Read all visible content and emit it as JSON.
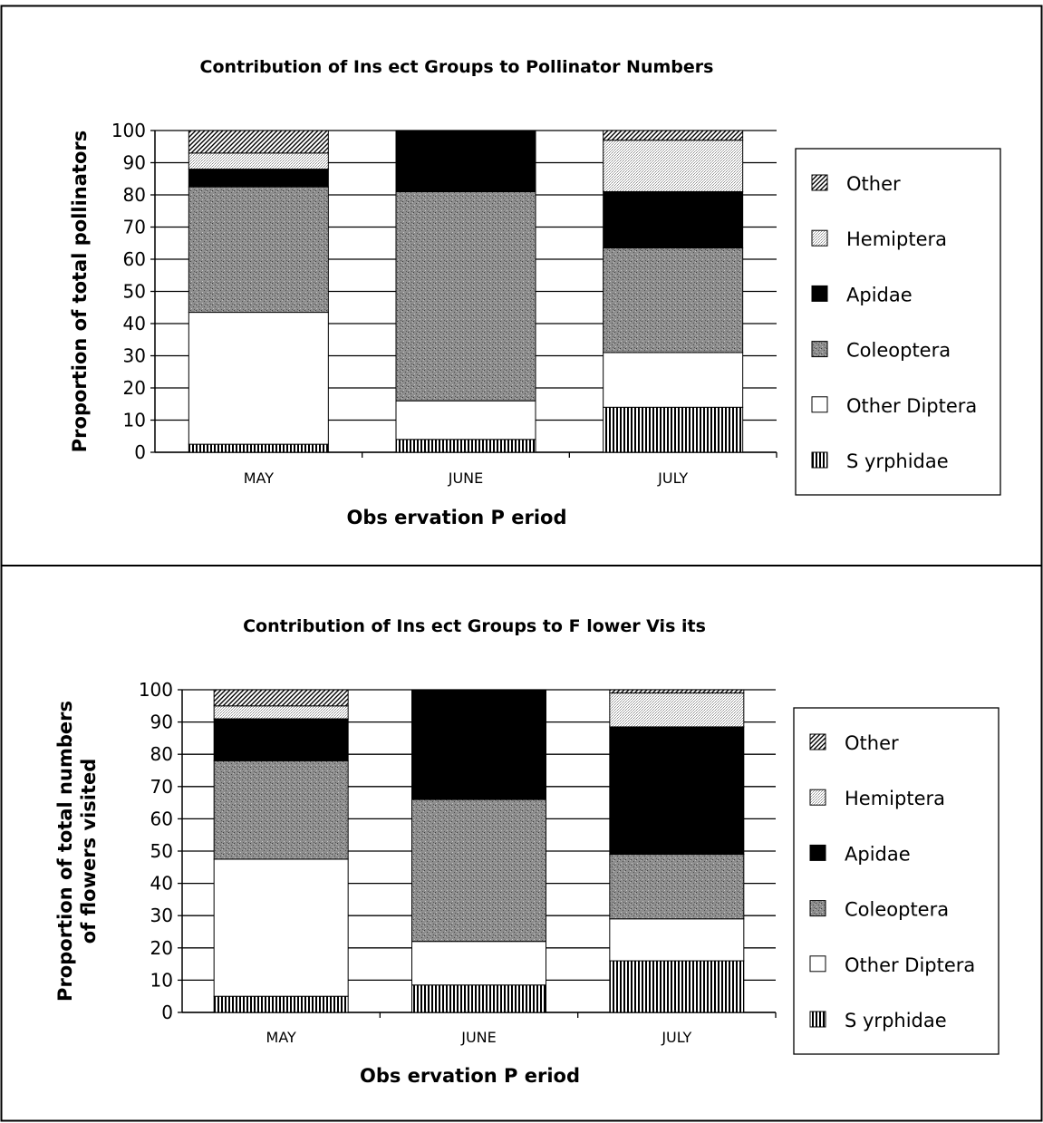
{
  "chart_data": [
    {
      "type": "bar",
      "stacked": true,
      "title": "Contribution of Ins ect Groups to Pollinator Numbers",
      "xlabel": "Obs ervation P eriod",
      "ylabel": "Proportion of total pollinators",
      "ylim": [
        0,
        100
      ],
      "yticks": [
        0,
        10,
        20,
        30,
        40,
        50,
        60,
        70,
        80,
        90,
        100
      ],
      "grid": true,
      "legend_position": "right",
      "categories": [
        "MAY",
        "JUNE",
        "JULY"
      ],
      "series": [
        {
          "name": "S yrphidae",
          "pattern": "vertical-stripes",
          "values": [
            2.5,
            4,
            14
          ]
        },
        {
          "name": "Other Diptera",
          "pattern": "white",
          "values": [
            41,
            12,
            17
          ]
        },
        {
          "name": "Coleoptera",
          "pattern": "stipple-dark",
          "values": [
            39,
            65,
            32.5
          ]
        },
        {
          "name": "Apidae",
          "pattern": "black",
          "values": [
            5.5,
            19,
            17.5
          ]
        },
        {
          "name": "Hemiptera",
          "pattern": "stipple-light",
          "values": [
            5,
            0,
            16
          ]
        },
        {
          "name": "Other",
          "pattern": "diagonal-stripes",
          "values": [
            7,
            0,
            3
          ]
        }
      ]
    },
    {
      "type": "bar",
      "stacked": true,
      "title": "Contribution of Ins ect Groups to F lower Vis its",
      "xlabel": "Obs ervation P eriod",
      "ylabel": [
        "Proportion of total numbers",
        "of flowers visited"
      ],
      "ylim": [
        0,
        100
      ],
      "yticks": [
        0,
        10,
        20,
        30,
        40,
        50,
        60,
        70,
        80,
        90,
        100
      ],
      "grid": true,
      "legend_position": "right",
      "categories": [
        "MAY",
        "JUNE",
        "JULY"
      ],
      "series": [
        {
          "name": "S yrphidae",
          "pattern": "vertical-stripes",
          "values": [
            5,
            8.5,
            16
          ]
        },
        {
          "name": "Other Diptera",
          "pattern": "white",
          "values": [
            42.5,
            13.5,
            13
          ]
        },
        {
          "name": "Coleoptera",
          "pattern": "stipple-dark",
          "values": [
            30.5,
            44,
            20
          ]
        },
        {
          "name": "Apidae",
          "pattern": "black",
          "values": [
            13,
            34,
            39.5
          ]
        },
        {
          "name": "Hemiptera",
          "pattern": "stipple-light",
          "values": [
            4,
            0,
            10.5
          ]
        },
        {
          "name": "Other",
          "pattern": "diagonal-stripes",
          "values": [
            5,
            0,
            1
          ]
        }
      ]
    }
  ]
}
